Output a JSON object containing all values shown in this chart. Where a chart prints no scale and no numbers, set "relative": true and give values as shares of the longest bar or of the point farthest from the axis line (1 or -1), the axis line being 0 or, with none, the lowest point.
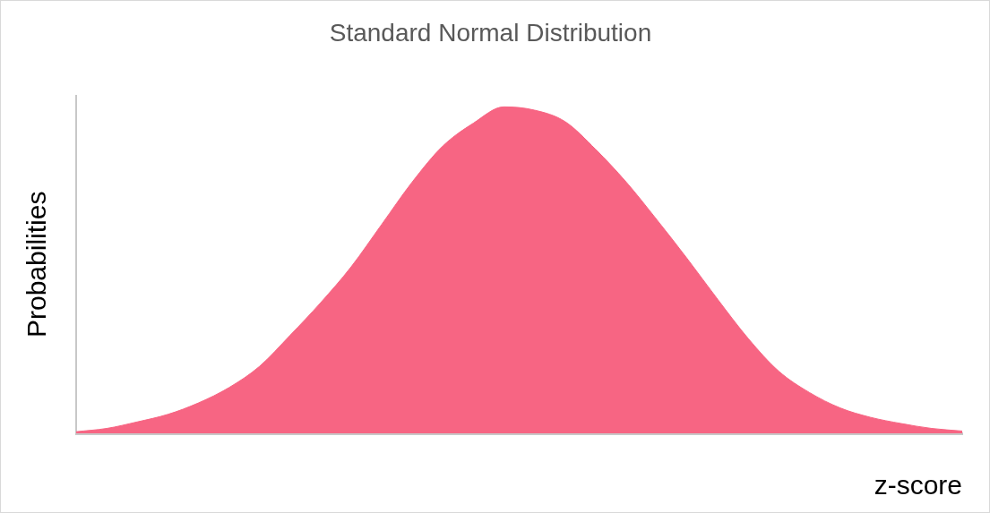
{
  "chart_data": {
    "type": "area",
    "title": "Standard Normal Distribution",
    "xlabel": "z-score",
    "ylabel": "Probabilities",
    "relative": true,
    "grid": false,
    "legend": false,
    "categories": [
      null,
      null,
      null,
      null,
      null,
      null,
      null,
      null,
      null,
      null,
      null,
      null,
      null,
      null,
      null,
      null,
      null,
      null,
      null,
      null,
      null,
      null,
      null,
      null,
      null,
      null,
      null,
      null,
      null,
      null
    ],
    "series": [
      {
        "color": "#f76583",
        "values": [
          0.005,
          0.015,
          0.035,
          0.058,
          0.093,
          0.14,
          0.205,
          0.3,
          0.4,
          0.51,
          0.64,
          0.77,
          0.88,
          0.95,
          1,
          0.99,
          0.955,
          0.87,
          0.77,
          0.655,
          0.535,
          0.41,
          0.29,
          0.19,
          0.125,
          0.078,
          0.049,
          0.03,
          0.015,
          0.007
        ]
      }
    ]
  }
}
